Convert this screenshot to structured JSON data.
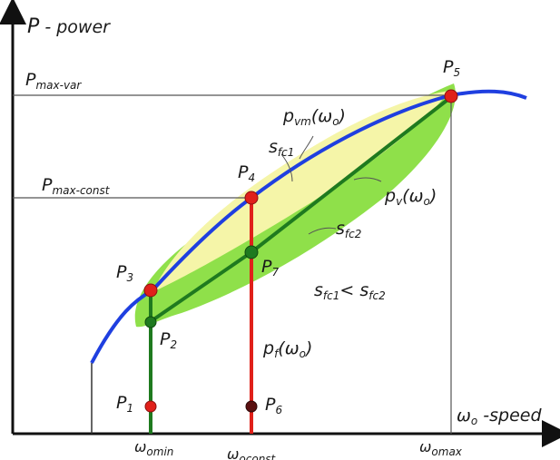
{
  "axes": {
    "y_label_main": "P",
    "y_label_rest": " - power",
    "x_label_sym": "ω",
    "x_label_sub": "o",
    "x_label_rest": " -speed"
  },
  "levels": {
    "pmax_var_main": "P",
    "pmax_var_sub": "max-var",
    "pmax_const_main": "P",
    "pmax_const_sub": "max-const"
  },
  "ticks": {
    "omin_sym": "ω",
    "omin_sub": "omin",
    "oconst_sym": "ω",
    "oconst_sub": "oconst",
    "omax_sym": "ω",
    "omax_sub": "omax"
  },
  "points": {
    "p1": {
      "main": "P",
      "sub": "1"
    },
    "p2": {
      "main": "P",
      "sub": "2"
    },
    "p3": {
      "main": "P",
      "sub": "3"
    },
    "p4": {
      "main": "P",
      "sub": "4"
    },
    "p5": {
      "main": "P",
      "sub": "5"
    },
    "p6": {
      "main": "P",
      "sub": "6"
    },
    "p7": {
      "main": "P",
      "sub": "7"
    }
  },
  "curves": {
    "pvm_main": "p",
    "pvm_sub": "vm",
    "pvm_arg": "(ω",
    "pvm_arg_sub": "o",
    "pvm_close": ")",
    "pv_main": "p",
    "pv_sub": "v",
    "pv_arg": "(ω",
    "pv_arg_sub": "o",
    "pv_close": ")",
    "pf_main": "p",
    "pf_sub": "f",
    "pf_arg": "(ω",
    "pf_arg_sub": "o",
    "pf_close": ")"
  },
  "areas": {
    "sfc1_main": "s",
    "sfc1_sub": "fc1",
    "sfc2_main": "s",
    "sfc2_sub": "fc2",
    "relation_a": "s",
    "relation_a_sub": "fc1",
    "relation_op": "< ",
    "relation_b": "s",
    "relation_b_sub": "fc2"
  },
  "colors": {
    "blue_curve": "#1f3fe0",
    "green_line": "#1f7a1f",
    "red_line": "#e0201a",
    "light_green": "#8fe04a",
    "light_yellow": "#f5f5a8",
    "point_red": "#e0201a",
    "point_dark": "#5a1010",
    "point_green": "#1f7a1f"
  }
}
